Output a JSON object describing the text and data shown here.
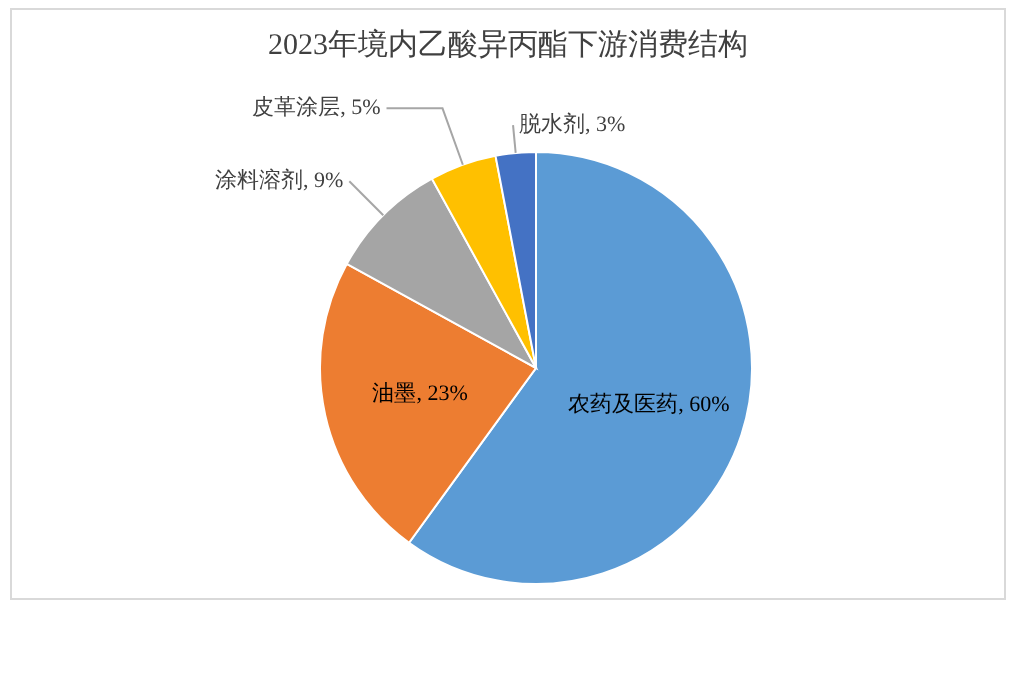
{
  "chart_data": {
    "type": "pie",
    "title": "2023年境内乙酸异丙酯下游消费结构",
    "categories": [
      "农药及医药",
      "油墨",
      "涂料溶剂",
      "皮革涂层",
      "脱水剂"
    ],
    "values": [
      60,
      23,
      9,
      5,
      3
    ],
    "value_labels": [
      "60%",
      "23%",
      "9%",
      "5%",
      "3%"
    ],
    "colors": [
      "#5b9bd5",
      "#ed7d31",
      "#a5a5a5",
      "#ffc000",
      "#4472c4"
    ]
  }
}
